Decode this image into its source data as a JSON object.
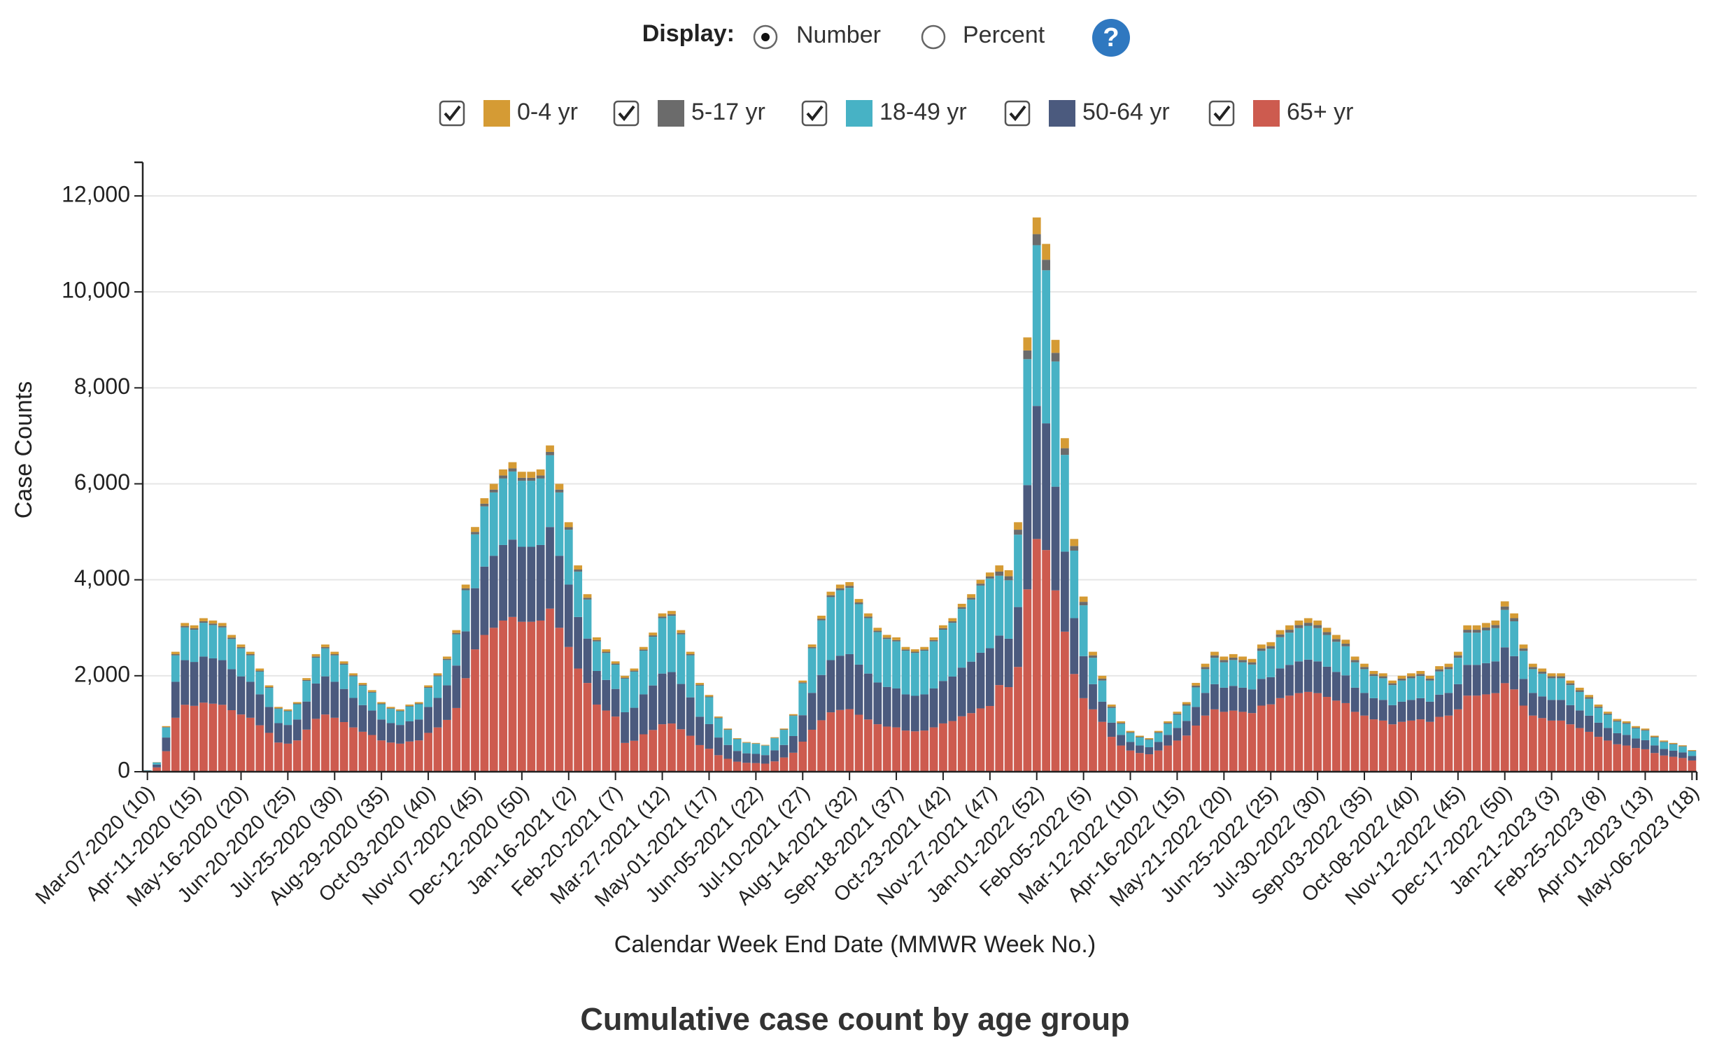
{
  "controls": {
    "display_label": "Display:",
    "options": [
      "Number",
      "Percent"
    ],
    "selected": 0,
    "help": "?"
  },
  "chart_data": {
    "type": "stacked_bar",
    "title": "Cumulative case count by age group",
    "x_label": "Calendar Week End Date (MMWR Week No.)",
    "y_label": "Case Counts",
    "legend": "top",
    "grid": true,
    "ylim": [
      0,
      12700
    ],
    "yticks": [
      0,
      {
        "value": 2000,
        "label": "2,000"
      },
      {
        "value": 4000,
        "label": "4,000"
      },
      {
        "value": 6000,
        "label": "6,000"
      },
      {
        "value": 8000,
        "label": "8,000"
      },
      {
        "value": 10000,
        "label": "10,000"
      },
      {
        "value": 12000,
        "label": "12,000"
      }
    ],
    "categories": [
      "Mar-07-2020 (10)",
      null,
      null,
      null,
      null,
      "Apr-11-2020 (15)",
      null,
      null,
      null,
      null,
      "May-16-2020 (20)",
      null,
      null,
      null,
      null,
      "Jun-20-2020 (25)",
      null,
      null,
      null,
      null,
      "Jul-25-2020 (30)",
      null,
      null,
      null,
      null,
      "Aug-29-2020 (35)",
      null,
      null,
      null,
      null,
      "Oct-03-2020 (40)",
      null,
      null,
      null,
      null,
      "Nov-07-2020 (45)",
      null,
      null,
      null,
      null,
      "Dec-12-2020 (50)",
      null,
      null,
      null,
      null,
      "Jan-16-2021 (2)",
      null,
      null,
      null,
      null,
      "Feb-20-2021 (7)",
      null,
      null,
      null,
      null,
      "Mar-27-2021 (12)",
      null,
      null,
      null,
      null,
      "May-01-2021 (17)",
      null,
      null,
      null,
      null,
      "Jun-05-2021 (22)",
      null,
      null,
      null,
      null,
      "Jul-10-2021 (27)",
      null,
      null,
      null,
      null,
      "Aug-14-2021 (32)",
      null,
      null,
      null,
      null,
      "Sep-18-2021 (37)",
      null,
      null,
      null,
      null,
      "Oct-23-2021 (42)",
      null,
      null,
      null,
      null,
      "Nov-27-2021 (47)",
      null,
      null,
      null,
      null,
      "Jan-01-2022 (52)",
      null,
      null,
      null,
      null,
      "Feb-05-2022 (5)",
      null,
      null,
      null,
      null,
      "Mar-12-2022 (10)",
      null,
      null,
      null,
      null,
      "Apr-16-2022 (15)",
      null,
      null,
      null,
      null,
      "May-21-2022 (20)",
      null,
      null,
      null,
      null,
      "Jun-25-2022 (25)",
      null,
      null,
      null,
      null,
      "Jul-30-2022 (30)",
      null,
      null,
      null,
      null,
      "Sep-03-2022 (35)",
      null,
      null,
      null,
      null,
      "Oct-08-2022 (40)",
      null,
      null,
      null,
      null,
      "Nov-12-2022 (45)",
      null,
      null,
      null,
      null,
      "Dec-17-2022 (50)",
      null,
      null,
      null,
      null,
      "Jan-21-2023 (3)",
      null,
      null,
      null,
      null,
      "Feb-25-2023 (8)",
      null,
      null,
      null,
      null,
      "Apr-01-2023 (13)",
      null,
      null,
      null,
      null,
      "May-06-2023 (18)"
    ],
    "series": [
      {
        "name": "0-4 yr",
        "color": "#d59b34",
        "values": [
          1,
          4,
          19,
          50,
          62,
          61,
          64,
          63,
          62,
          57,
          53,
          50,
          43,
          36,
          27,
          26,
          29,
          39,
          49,
          53,
          50,
          46,
          41,
          37,
          34,
          29,
          27,
          26,
          28,
          29,
          36,
          41,
          48,
          59,
          78,
          102,
          114,
          120,
          126,
          129,
          125,
          125,
          126,
          136,
          120,
          104,
          86,
          74,
          56,
          51,
          46,
          40,
          43,
          52,
          58,
          66,
          67,
          59,
          50,
          37,
          32,
          23,
          18,
          14,
          12,
          12,
          11,
          14,
          18,
          24,
          38,
          53,
          65,
          75,
          78,
          79,
          72,
          66,
          60,
          57,
          56,
          52,
          51,
          52,
          56,
          61,
          64,
          70,
          74,
          80,
          83,
          129,
          126,
          156,
          272,
          347,
          330,
          270,
          209,
          146,
          110,
          75,
          60,
          42,
          32,
          26,
          23,
          21,
          26,
          32,
          38,
          44,
          56,
          68,
          75,
          72,
          74,
          72,
          71,
          80,
          81,
          89,
          92,
          95,
          96,
          95,
          90,
          86,
          83,
          72,
          68,
          63,
          62,
          57,
          60,
          62,
          63,
          60,
          66,
          68,
          75,
          92,
          92,
          93,
          95,
          107,
          99,
          80,
          68,
          65,
          62,
          62,
          57,
          53,
          48,
          42,
          38,
          33,
          32,
          29,
          27,
          23,
          20,
          18,
          17,
          14
        ]
      },
      {
        "name": "5-17 yr",
        "color": "#6b6b6b",
        "values": [
          0,
          2,
          10,
          25,
          31,
          31,
          32,
          32,
          31,
          29,
          27,
          25,
          22,
          18,
          14,
          13,
          15,
          20,
          25,
          27,
          25,
          23,
          21,
          19,
          17,
          15,
          14,
          13,
          14,
          15,
          18,
          21,
          24,
          30,
          39,
          51,
          57,
          60,
          63,
          65,
          63,
          63,
          63,
          68,
          60,
          52,
          43,
          37,
          28,
          26,
          23,
          20,
          22,
          26,
          29,
          33,
          34,
          30,
          25,
          19,
          16,
          12,
          9,
          7,
          6,
          6,
          6,
          7,
          9,
          12,
          19,
          27,
          33,
          38,
          39,
          40,
          36,
          33,
          30,
          29,
          28,
          26,
          26,
          26,
          28,
          31,
          32,
          35,
          37,
          40,
          42,
          86,
          84,
          104,
          181,
          231,
          220,
          180,
          139,
          97,
          73,
          50,
          40,
          28,
          21,
          17,
          15,
          14,
          17,
          21,
          25,
          29,
          37,
          45,
          50,
          48,
          49,
          48,
          47,
          53,
          54,
          59,
          61,
          63,
          64,
          63,
          60,
          57,
          55,
          48,
          45,
          42,
          41,
          38,
          40,
          41,
          42,
          40,
          44,
          45,
          50,
          61,
          61,
          62,
          63,
          71,
          66,
          53,
          45,
          43,
          41,
          41,
          38,
          35,
          32,
          28,
          25,
          22,
          21,
          19,
          18,
          15,
          13,
          12,
          11,
          9
        ]
      },
      {
        "name": "18-49 yr",
        "color": "#47b2c5",
        "values": [
          7,
          44,
          209,
          550,
          682,
          671,
          704,
          693,
          682,
          627,
          583,
          550,
          473,
          396,
          297,
          286,
          319,
          429,
          539,
          583,
          550,
          506,
          451,
          407,
          374,
          319,
          297,
          286,
          308,
          319,
          396,
          451,
          528,
          649,
          858,
          1122,
          1254,
          1320,
          1386,
          1419,
          1375,
          1375,
          1386,
          1496,
          1320,
          1144,
          946,
          814,
          616,
          561,
          506,
          700,
          753,
          910,
          1015,
          1155,
          1173,
          1033,
          875,
          648,
          560,
          403,
          315,
          245,
          217,
          210,
          196,
          252,
          315,
          420,
          665,
          928,
          1138,
          1313,
          1365,
          1383,
          1260,
          1155,
          1050,
          998,
          980,
          910,
          893,
          910,
          980,
          1068,
          1120,
          1225,
          1295,
          1400,
          1453,
          1247,
          1218,
          1508,
          2625,
          3350,
          3190,
          2610,
          2016,
          1407,
          1059,
          550,
          440,
          308,
          231,
          187,
          165,
          154,
          187,
          231,
          275,
          319,
          407,
          495,
          550,
          528,
          539,
          528,
          517,
          583,
          594,
          649,
          671,
          693,
          704,
          693,
          660,
          627,
          605,
          528,
          495,
          462,
          451,
          418,
          440,
          451,
          462,
          440,
          484,
          495,
          550,
          671,
          671,
          682,
          693,
          781,
          726,
          583,
          495,
          473,
          451,
          451,
          418,
          385,
          352,
          308,
          275,
          242,
          231,
          209,
          198,
          165,
          143,
          132,
          121,
          99
        ]
      },
      {
        "name": "50-64 yr",
        "color": "#4b5a7e",
        "values": [
          9,
          60,
          285,
          750,
          930,
          915,
          960,
          945,
          930,
          855,
          795,
          750,
          645,
          540,
          405,
          390,
          435,
          585,
          735,
          795,
          750,
          690,
          615,
          555,
          510,
          435,
          405,
          390,
          420,
          435,
          540,
          615,
          720,
          885,
          975,
          1275,
          1425,
          1500,
          1575,
          1613,
          1563,
          1563,
          1575,
          1700,
          1500,
          1300,
          1075,
          925,
          700,
          638,
          575,
          640,
          688,
          832,
          928,
          1056,
          1072,
          944,
          800,
          592,
          512,
          368,
          288,
          224,
          198,
          192,
          179,
          230,
          261,
          348,
          551,
          769,
          943,
          1088,
          1131,
          1146,
          1044,
          957,
          870,
          827,
          812,
          754,
          740,
          754,
          812,
          885,
          928,
          1015,
          1073,
          1160,
          1204,
          1032,
          1008,
          1248,
          2172,
          2772,
          2640,
          2160,
          1668,
          1164,
          876,
          525,
          420,
          294,
          221,
          179,
          158,
          147,
          179,
          221,
          263,
          305,
          389,
          473,
          525,
          504,
          515,
          504,
          494,
          557,
          567,
          620,
          641,
          662,
          672,
          662,
          630,
          599,
          578,
          504,
          473,
          441,
          431,
          399,
          420,
          431,
          441,
          420,
          462,
          473,
          525,
          641,
          641,
          651,
          662,
          746,
          693,
          557,
          473,
          452,
          431,
          431,
          399,
          368,
          336,
          294,
          263,
          231,
          221,
          200,
          189,
          158,
          137,
          126,
          116,
          95
        ]
      },
      {
        "name": "65+ yr",
        "color": "#cd5b4f",
        "values": [
          14,
          90,
          428,
          1125,
          1395,
          1373,
          1440,
          1418,
          1395,
          1283,
          1193,
          1125,
          968,
          810,
          608,
          585,
          653,
          878,
          1103,
          1193,
          1125,
          1035,
          923,
          833,
          765,
          653,
          608,
          585,
          630,
          653,
          810,
          923,
          1080,
          1328,
          1950,
          2550,
          2850,
          3000,
          3150,
          3225,
          3125,
          3125,
          3150,
          3400,
          3000,
          2600,
          2150,
          1850,
          1400,
          1275,
          1150,
          600,
          645,
          780,
          870,
          990,
          1005,
          885,
          750,
          555,
          480,
          345,
          270,
          210,
          186,
          180,
          168,
          216,
          297,
          396,
          627,
          875,
          1073,
          1238,
          1287,
          1304,
          1188,
          1089,
          990,
          941,
          924,
          858,
          842,
          858,
          924,
          1007,
          1056,
          1155,
          1221,
          1320,
          1370,
          1806,
          1764,
          2184,
          3801,
          4851,
          4620,
          3780,
          2919,
          2037,
          1533,
          1300,
          1040,
          728,
          546,
          442,
          390,
          364,
          442,
          546,
          650,
          754,
          962,
          1170,
          1300,
          1248,
          1274,
          1248,
          1222,
          1378,
          1404,
          1534,
          1586,
          1638,
          1664,
          1638,
          1560,
          1482,
          1430,
          1248,
          1170,
          1092,
          1066,
          988,
          1040,
          1066,
          1092,
          1040,
          1144,
          1170,
          1300,
          1586,
          1586,
          1612,
          1638,
          1846,
          1716,
          1378,
          1170,
          1118,
          1066,
          1066,
          988,
          910,
          832,
          728,
          650,
          572,
          546,
          494,
          468,
          390,
          338,
          312,
          286,
          234
        ]
      }
    ]
  }
}
